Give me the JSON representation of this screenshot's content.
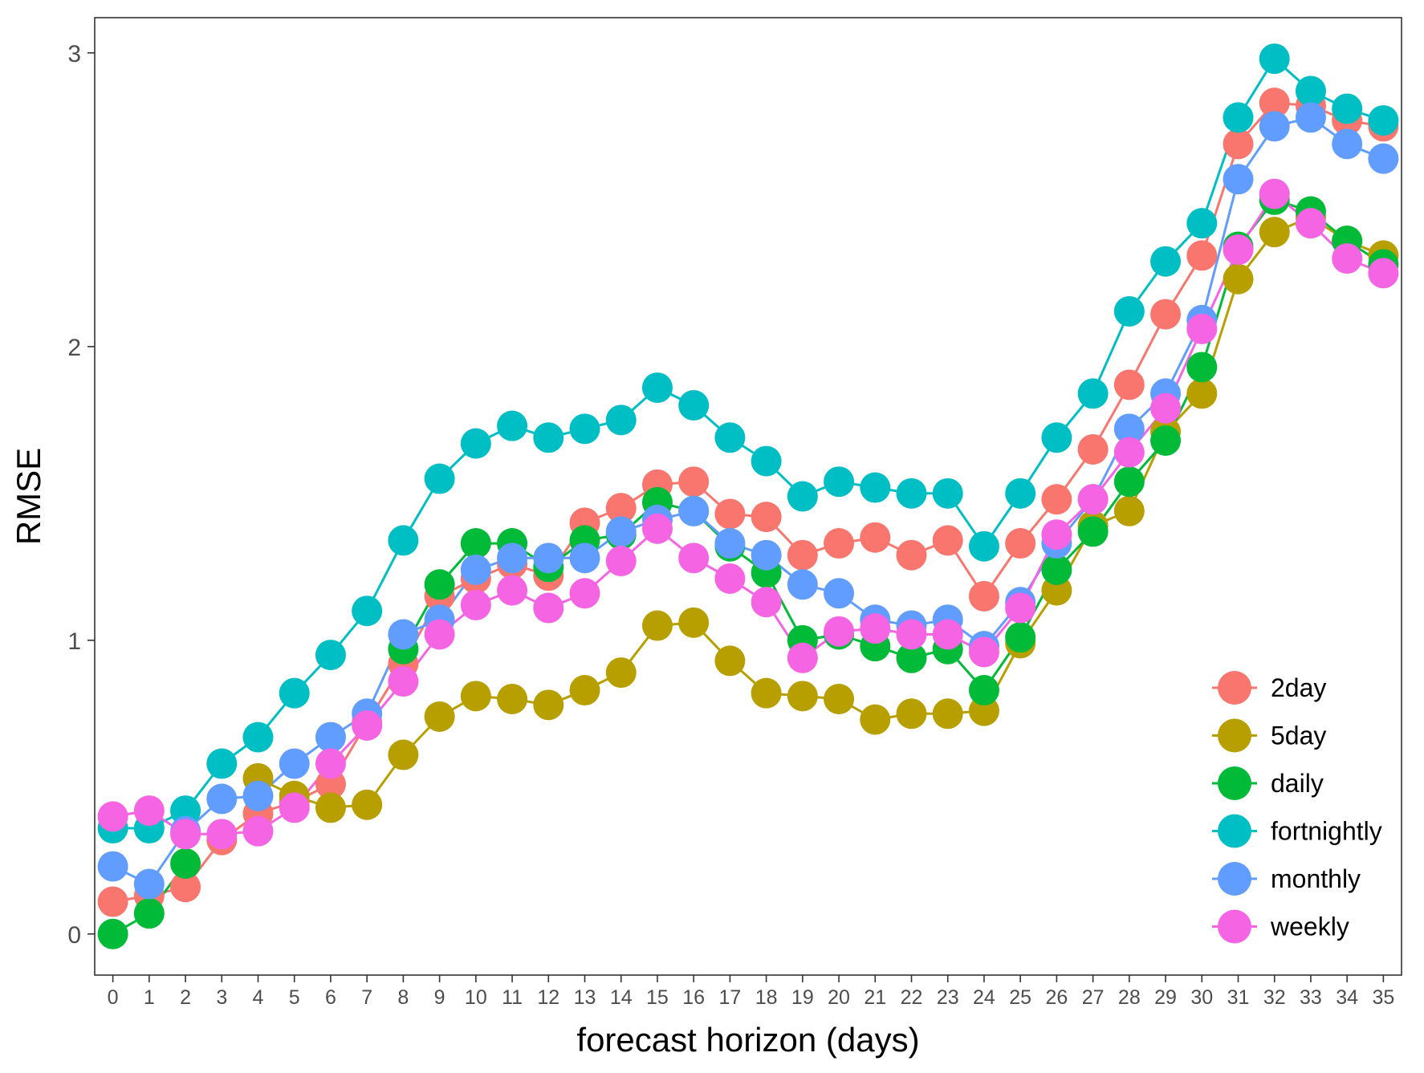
{
  "chart_data": {
    "type": "line",
    "title": "",
    "xlabel": "forecast horizon (days)",
    "ylabel": "RMSE",
    "xlim": [
      -0.5,
      35.5
    ],
    "ylim": [
      -0.14,
      3.12
    ],
    "x": [
      0,
      1,
      2,
      3,
      4,
      5,
      6,
      7,
      8,
      9,
      10,
      11,
      12,
      13,
      14,
      15,
      16,
      17,
      18,
      19,
      20,
      21,
      22,
      23,
      24,
      25,
      26,
      27,
      28,
      29,
      30,
      31,
      32,
      33,
      34,
      35
    ],
    "x_tick_labels": [
      "0",
      "1",
      "2",
      "3",
      "4",
      "5",
      "6",
      "7",
      "8",
      "9",
      "10",
      "11",
      "12",
      "13",
      "14",
      "15",
      "16",
      "17",
      "18",
      "19",
      "20",
      "21",
      "22",
      "23",
      "24",
      "25",
      "26",
      "27",
      "28",
      "29",
      "30",
      "31",
      "32",
      "33",
      "34",
      "35"
    ],
    "y_ticks": [
      0,
      1,
      2,
      3
    ],
    "y_tick_labels": [
      "0",
      "1",
      "2",
      "3"
    ],
    "grid": false,
    "legend_position": "bottom-right (inside)",
    "series": [
      {
        "name": "2day",
        "color": "#F8766D",
        "values": [
          0.11,
          0.13,
          0.16,
          0.32,
          0.41,
          0.45,
          0.51,
          0.72,
          0.92,
          1.15,
          1.21,
          1.26,
          1.22,
          1.4,
          1.45,
          1.53,
          1.54,
          1.43,
          1.42,
          1.29,
          1.33,
          1.35,
          1.29,
          1.34,
          1.15,
          1.33,
          1.48,
          1.65,
          1.87,
          2.11,
          2.31,
          2.69,
          2.83,
          2.82,
          2.77,
          2.75
        ]
      },
      {
        "name": "5day",
        "color": "#B79F00",
        "values": [
          null,
          null,
          null,
          null,
          0.53,
          0.47,
          0.43,
          0.44,
          0.61,
          0.74,
          0.81,
          0.8,
          0.78,
          0.83,
          0.89,
          1.05,
          1.06,
          0.93,
          0.82,
          0.81,
          0.8,
          0.73,
          0.75,
          0.75,
          0.76,
          0.99,
          1.17,
          1.39,
          1.44,
          1.71,
          1.84,
          2.23,
          2.39,
          2.44,
          2.36,
          2.31
        ]
      },
      {
        "name": "daily",
        "color": "#00BA38",
        "values": [
          0.0,
          0.07,
          0.24,
          null,
          null,
          null,
          null,
          null,
          0.97,
          1.19,
          1.33,
          1.33,
          1.25,
          1.34,
          1.36,
          1.47,
          1.44,
          1.32,
          1.23,
          1.0,
          1.02,
          0.98,
          0.94,
          0.97,
          0.83,
          1.01,
          1.24,
          1.37,
          1.54,
          1.68,
          1.93,
          2.34,
          2.5,
          2.46,
          2.36,
          2.28
        ]
      },
      {
        "name": "fortnightly",
        "color": "#00BFC4",
        "values": [
          0.36,
          0.36,
          0.42,
          0.58,
          0.67,
          0.82,
          0.95,
          1.1,
          1.34,
          1.55,
          1.67,
          1.73,
          1.69,
          1.72,
          1.75,
          1.86,
          1.8,
          1.69,
          1.61,
          1.49,
          1.54,
          1.52,
          1.5,
          1.5,
          1.32,
          1.5,
          1.69,
          1.84,
          2.12,
          2.29,
          2.42,
          2.78,
          2.98,
          2.87,
          2.81,
          2.77
        ]
      },
      {
        "name": "monthly",
        "color": "#619CFF",
        "values": [
          0.23,
          0.17,
          0.35,
          0.46,
          0.47,
          0.58,
          0.67,
          0.75,
          1.02,
          1.07,
          1.24,
          1.28,
          1.28,
          1.28,
          1.37,
          1.41,
          1.44,
          1.33,
          1.29,
          1.19,
          1.16,
          1.07,
          1.05,
          1.07,
          0.98,
          1.13,
          1.33,
          1.48,
          1.72,
          1.84,
          2.09,
          2.57,
          2.75,
          2.78,
          2.69,
          2.64
        ]
      },
      {
        "name": "weekly",
        "color": "#F564E3",
        "values": [
          0.4,
          0.42,
          0.34,
          0.34,
          0.35,
          0.43,
          0.58,
          0.71,
          0.86,
          1.02,
          1.12,
          1.17,
          1.11,
          1.16,
          1.27,
          1.38,
          1.28,
          1.21,
          1.13,
          0.94,
          1.03,
          1.04,
          1.02,
          1.02,
          0.96,
          1.11,
          1.36,
          1.48,
          1.64,
          1.79,
          2.06,
          2.33,
          2.52,
          2.42,
          2.3,
          2.25
        ]
      }
    ]
  }
}
